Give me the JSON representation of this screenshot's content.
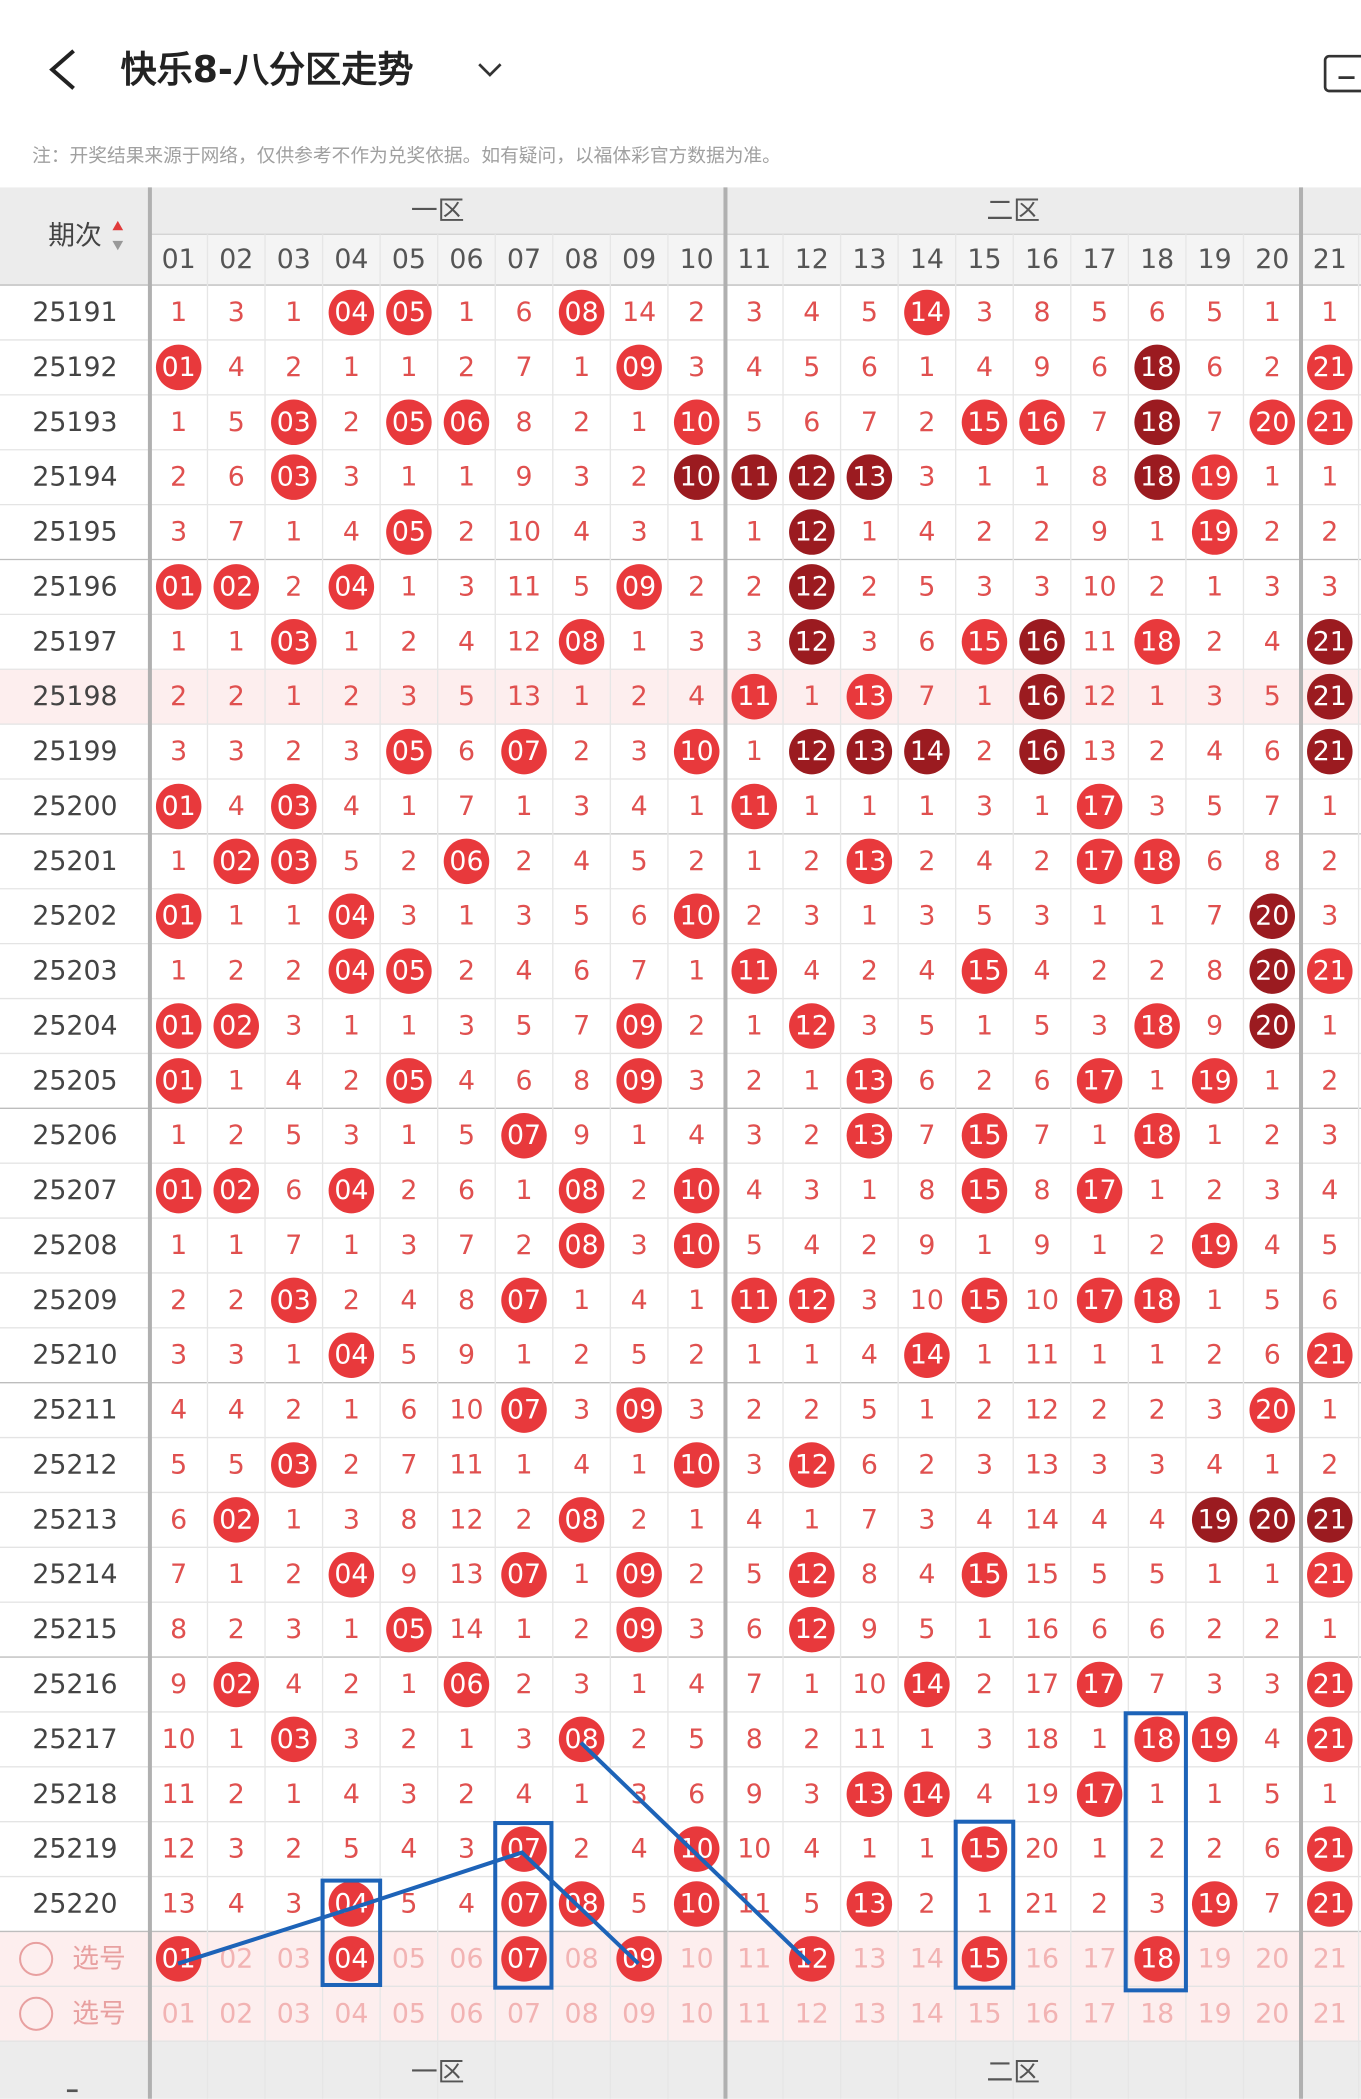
{
  "header": {
    "title": "快乐8-八分区走势"
  },
  "note": "注：开奖结果来源于网络，仅供参考不作为兑奖依据。如有疑问，以福体彩官方数据为准。",
  "table": {
    "issue_header": "期次",
    "zones": [
      "一区",
      "二区"
    ],
    "columns": [
      "01",
      "02",
      "03",
      "04",
      "05",
      "06",
      "07",
      "08",
      "09",
      "10",
      "11",
      "12",
      "13",
      "14",
      "15",
      "16",
      "17",
      "18",
      "19",
      "20",
      "21"
    ],
    "rows": [
      {
        "issue": "25191",
        "cells": [
          "1",
          "3",
          "1",
          "04",
          "05",
          "1",
          "6",
          "08",
          "14",
          "2",
          "3",
          "4",
          "5",
          "14",
          "3",
          "8",
          "5",
          "6",
          "5",
          "1",
          "1"
        ],
        "hits": [
          3,
          4,
          7,
          13
        ],
        "dark": []
      },
      {
        "issue": "25192",
        "cells": [
          "01",
          "4",
          "2",
          "1",
          "1",
          "2",
          "7",
          "1",
          "09",
          "3",
          "4",
          "5",
          "6",
          "1",
          "4",
          "9",
          "6",
          "18",
          "6",
          "2",
          "21"
        ],
        "hits": [
          0,
          8,
          17,
          20
        ],
        "dark": [
          17
        ]
      },
      {
        "issue": "25193",
        "cells": [
          "1",
          "5",
          "03",
          "2",
          "05",
          "06",
          "8",
          "2",
          "1",
          "10",
          "5",
          "6",
          "7",
          "2",
          "15",
          "16",
          "7",
          "18",
          "7",
          "20",
          "21"
        ],
        "hits": [
          2,
          4,
          5,
          9,
          14,
          15,
          17,
          19,
          20
        ],
        "dark": [
          17
        ]
      },
      {
        "issue": "25194",
        "cells": [
          "2",
          "6",
          "03",
          "3",
          "1",
          "1",
          "9",
          "3",
          "2",
          "10",
          "11",
          "12",
          "13",
          "3",
          "1",
          "1",
          "8",
          "18",
          "19",
          "1",
          "1"
        ],
        "hits": [
          2,
          9,
          10,
          11,
          12,
          17,
          18
        ],
        "dark": [
          9,
          10,
          11,
          12,
          17
        ]
      },
      {
        "issue": "25195",
        "cells": [
          "3",
          "7",
          "1",
          "4",
          "05",
          "2",
          "10",
          "4",
          "3",
          "1",
          "1",
          "12",
          "1",
          "4",
          "2",
          "2",
          "9",
          "1",
          "19",
          "2",
          "2"
        ],
        "hits": [
          4,
          11,
          18
        ],
        "dark": [
          11
        ]
      },
      {
        "issue": "25196",
        "cells": [
          "01",
          "02",
          "2",
          "04",
          "1",
          "3",
          "11",
          "5",
          "09",
          "2",
          "2",
          "12",
          "2",
          "5",
          "3",
          "3",
          "10",
          "2",
          "1",
          "3",
          "3"
        ],
        "hits": [
          0,
          1,
          3,
          8,
          11
        ],
        "dark": [
          11
        ]
      },
      {
        "issue": "25197",
        "cells": [
          "1",
          "1",
          "03",
          "1",
          "2",
          "4",
          "12",
          "08",
          "1",
          "3",
          "3",
          "12",
          "3",
          "6",
          "15",
          "16",
          "11",
          "18",
          "2",
          "4",
          "21"
        ],
        "hits": [
          2,
          7,
          11,
          14,
          15,
          17,
          20
        ],
        "dark": [
          11,
          15,
          20
        ]
      },
      {
        "issue": "25198",
        "cells": [
          "2",
          "2",
          "1",
          "2",
          "3",
          "5",
          "13",
          "1",
          "2",
          "4",
          "11",
          "1",
          "13",
          "7",
          "1",
          "16",
          "12",
          "1",
          "3",
          "5",
          "21"
        ],
        "hits": [
          10,
          12,
          15,
          20
        ],
        "dark": [
          15,
          20
        ]
      },
      {
        "issue": "25199",
        "cells": [
          "3",
          "3",
          "2",
          "3",
          "05",
          "6",
          "07",
          "2",
          "3",
          "10",
          "1",
          "12",
          "13",
          "14",
          "2",
          "16",
          "13",
          "2",
          "4",
          "6",
          "21"
        ],
        "hits": [
          4,
          6,
          9,
          11,
          12,
          13,
          15,
          20
        ],
        "dark": [
          11,
          12,
          13,
          15,
          20
        ]
      },
      {
        "issue": "25200",
        "cells": [
          "01",
          "4",
          "03",
          "4",
          "1",
          "7",
          "1",
          "3",
          "4",
          "1",
          "11",
          "1",
          "1",
          "1",
          "3",
          "1",
          "17",
          "3",
          "5",
          "7",
          "1"
        ],
        "hits": [
          0,
          2,
          10,
          16
        ],
        "dark": []
      },
      {
        "issue": "25201",
        "cells": [
          "1",
          "02",
          "03",
          "5",
          "2",
          "06",
          "2",
          "4",
          "5",
          "2",
          "1",
          "2",
          "13",
          "2",
          "4",
          "2",
          "17",
          "18",
          "6",
          "8",
          "2"
        ],
        "hits": [
          1,
          2,
          5,
          12,
          16,
          17
        ],
        "dark": []
      },
      {
        "issue": "25202",
        "cells": [
          "01",
          "1",
          "1",
          "04",
          "3",
          "1",
          "3",
          "5",
          "6",
          "10",
          "2",
          "3",
          "1",
          "3",
          "5",
          "3",
          "1",
          "1",
          "7",
          "20",
          "3"
        ],
        "hits": [
          0,
          3,
          9,
          19
        ],
        "dark": [
          19
        ]
      },
      {
        "issue": "25203",
        "cells": [
          "1",
          "2",
          "2",
          "04",
          "05",
          "2",
          "4",
          "6",
          "7",
          "1",
          "11",
          "4",
          "2",
          "4",
          "15",
          "4",
          "2",
          "2",
          "8",
          "20",
          "21"
        ],
        "hits": [
          3,
          4,
          10,
          14,
          19,
          20
        ],
        "dark": [
          19
        ]
      },
      {
        "issue": "25204",
        "cells": [
          "01",
          "02",
          "3",
          "1",
          "1",
          "3",
          "5",
          "7",
          "09",
          "2",
          "1",
          "12",
          "3",
          "5",
          "1",
          "5",
          "3",
          "18",
          "9",
          "20",
          "1"
        ],
        "hits": [
          0,
          1,
          8,
          11,
          17,
          19
        ],
        "dark": [
          19
        ]
      },
      {
        "issue": "25205",
        "cells": [
          "01",
          "1",
          "4",
          "2",
          "05",
          "4",
          "6",
          "8",
          "09",
          "3",
          "2",
          "1",
          "13",
          "6",
          "2",
          "6",
          "17",
          "1",
          "19",
          "1",
          "2"
        ],
        "hits": [
          0,
          4,
          8,
          12,
          16,
          18
        ],
        "dark": []
      },
      {
        "issue": "25206",
        "cells": [
          "1",
          "2",
          "5",
          "3",
          "1",
          "5",
          "07",
          "9",
          "1",
          "4",
          "3",
          "2",
          "13",
          "7",
          "15",
          "7",
          "1",
          "18",
          "1",
          "2",
          "3"
        ],
        "hits": [
          6,
          12,
          14,
          17
        ],
        "dark": []
      },
      {
        "issue": "25207",
        "cells": [
          "01",
          "02",
          "6",
          "04",
          "2",
          "6",
          "1",
          "08",
          "2",
          "10",
          "4",
          "3",
          "1",
          "8",
          "15",
          "8",
          "17",
          "1",
          "2",
          "3",
          "4"
        ],
        "hits": [
          0,
          1,
          3,
          7,
          9,
          14,
          16
        ],
        "dark": []
      },
      {
        "issue": "25208",
        "cells": [
          "1",
          "1",
          "7",
          "1",
          "3",
          "7",
          "2",
          "08",
          "3",
          "10",
          "5",
          "4",
          "2",
          "9",
          "1",
          "9",
          "1",
          "2",
          "19",
          "4",
          "5"
        ],
        "hits": [
          7,
          9,
          18
        ],
        "dark": []
      },
      {
        "issue": "25209",
        "cells": [
          "2",
          "2",
          "03",
          "2",
          "4",
          "8",
          "07",
          "1",
          "4",
          "1",
          "11",
          "12",
          "3",
          "10",
          "15",
          "10",
          "17",
          "18",
          "1",
          "5",
          "6"
        ],
        "hits": [
          2,
          6,
          10,
          11,
          14,
          16,
          17
        ],
        "dark": []
      },
      {
        "issue": "25210",
        "cells": [
          "3",
          "3",
          "1",
          "04",
          "5",
          "9",
          "1",
          "2",
          "5",
          "2",
          "1",
          "1",
          "4",
          "14",
          "1",
          "11",
          "1",
          "1",
          "2",
          "6",
          "21"
        ],
        "hits": [
          3,
          13,
          20
        ],
        "dark": []
      },
      {
        "issue": "25211",
        "cells": [
          "4",
          "4",
          "2",
          "1",
          "6",
          "10",
          "07",
          "3",
          "09",
          "3",
          "2",
          "2",
          "5",
          "1",
          "2",
          "12",
          "2",
          "2",
          "3",
          "20",
          "1"
        ],
        "hits": [
          6,
          8,
          19
        ],
        "dark": []
      },
      {
        "issue": "25212",
        "cells": [
          "5",
          "5",
          "03",
          "2",
          "7",
          "11",
          "1",
          "4",
          "1",
          "10",
          "3",
          "12",
          "6",
          "2",
          "3",
          "13",
          "3",
          "3",
          "4",
          "1",
          "2"
        ],
        "hits": [
          2,
          9,
          11
        ],
        "dark": []
      },
      {
        "issue": "25213",
        "cells": [
          "6",
          "02",
          "1",
          "3",
          "8",
          "12",
          "2",
          "08",
          "2",
          "1",
          "4",
          "1",
          "7",
          "3",
          "4",
          "14",
          "4",
          "4",
          "19",
          "20",
          "21"
        ],
        "hits": [
          1,
          7,
          18,
          19,
          20
        ],
        "dark": [
          18,
          19,
          20
        ]
      },
      {
        "issue": "25214",
        "cells": [
          "7",
          "1",
          "2",
          "04",
          "9",
          "13",
          "07",
          "1",
          "09",
          "2",
          "5",
          "12",
          "8",
          "4",
          "15",
          "15",
          "5",
          "5",
          "1",
          "1",
          "21"
        ],
        "hits": [
          3,
          6,
          8,
          11,
          14,
          20
        ],
        "dark": []
      },
      {
        "issue": "25215",
        "cells": [
          "8",
          "2",
          "3",
          "1",
          "05",
          "14",
          "1",
          "2",
          "09",
          "3",
          "6",
          "12",
          "9",
          "5",
          "1",
          "16",
          "6",
          "6",
          "2",
          "2",
          "1"
        ],
        "hits": [
          4,
          8,
          11
        ],
        "dark": []
      },
      {
        "issue": "25216",
        "cells": [
          "9",
          "02",
          "4",
          "2",
          "1",
          "06",
          "2",
          "3",
          "1",
          "4",
          "7",
          "1",
          "10",
          "14",
          "2",
          "17",
          "17",
          "7",
          "3",
          "3",
          "21"
        ],
        "hits": [
          1,
          5,
          13,
          16,
          20
        ],
        "dark": []
      },
      {
        "issue": "25217",
        "cells": [
          "10",
          "1",
          "03",
          "3",
          "2",
          "1",
          "3",
          "08",
          "2",
          "5",
          "8",
          "2",
          "11",
          "1",
          "3",
          "18",
          "1",
          "18",
          "19",
          "4",
          "21"
        ],
        "hits": [
          2,
          7,
          17,
          18,
          20
        ],
        "dark": []
      },
      {
        "issue": "25218",
        "cells": [
          "11",
          "2",
          "1",
          "4",
          "3",
          "2",
          "4",
          "1",
          "3",
          "6",
          "9",
          "3",
          "13",
          "14",
          "4",
          "19",
          "17",
          "1",
          "1",
          "5",
          "1"
        ],
        "hits": [
          12,
          13,
          16
        ],
        "dark": []
      },
      {
        "issue": "25219",
        "cells": [
          "12",
          "3",
          "2",
          "5",
          "4",
          "3",
          "07",
          "2",
          "4",
          "10",
          "10",
          "4",
          "1",
          "1",
          "15",
          "20",
          "1",
          "2",
          "2",
          "6",
          "21"
        ],
        "hits": [
          6,
          9,
          14,
          20
        ],
        "dark": []
      },
      {
        "issue": "25220",
        "cells": [
          "13",
          "4",
          "3",
          "04",
          "5",
          "4",
          "07",
          "08",
          "5",
          "10",
          "11",
          "5",
          "13",
          "2",
          "1",
          "21",
          "2",
          "3",
          "19",
          "7",
          "21"
        ],
        "hits": [
          3,
          6,
          7,
          9,
          12,
          18,
          20
        ],
        "dark": []
      }
    ],
    "highlight_rows": [
      7
    ],
    "pick_rows": [
      {
        "label": "选号",
        "selected": [
          0,
          3,
          6,
          8,
          11,
          14,
          17
        ]
      },
      {
        "label": "选号",
        "selected": []
      }
    ]
  }
}
